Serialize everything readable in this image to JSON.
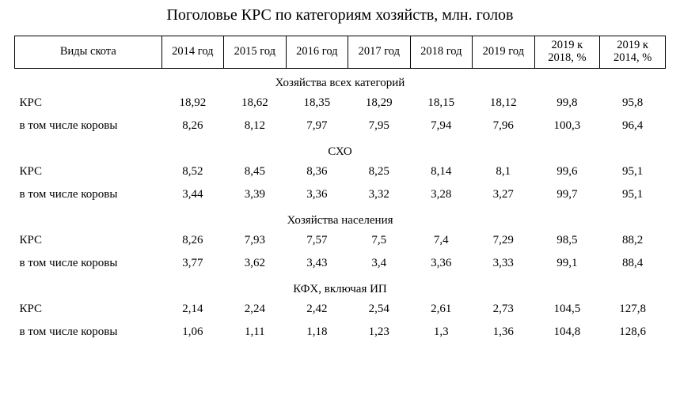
{
  "title": "Поголовье КРС по категориям хозяйств, млн. голов",
  "type": "table",
  "background_color": "#ffffff",
  "text_color": "#000000",
  "border_color": "#000000",
  "font_family": "Times New Roman",
  "title_fontsize": 20,
  "body_fontsize": 15,
  "columns": {
    "c0": "Виды скота",
    "c1": "2014 год",
    "c2": "2015 год",
    "c3": "2016 год",
    "c4": "2017 год",
    "c5": "2018 год",
    "c6": "2019 год",
    "c7_line1": "2019 к",
    "c7_line2": "2018, %",
    "c8_line1": "2019 к",
    "c8_line2": "2014, %"
  },
  "sections": [
    {
      "heading": "Хозяйства всех категорий",
      "rows": [
        {
          "label": "КРС",
          "v": [
            "18,92",
            "18,62",
            "18,35",
            "18,29",
            "18,15",
            "18,12",
            "99,8",
            "95,8"
          ]
        },
        {
          "label": "в том числе коровы",
          "v": [
            "8,26",
            "8,12",
            "7,97",
            "7,95",
            "7,94",
            "7,96",
            "100,3",
            "96,4"
          ]
        }
      ]
    },
    {
      "heading": "СХО",
      "rows": [
        {
          "label": "КРС",
          "v": [
            "8,52",
            "8,45",
            "8,36",
            "8,25",
            "8,14",
            "8,1",
            "99,6",
            "95,1"
          ]
        },
        {
          "label": "в том числе коровы",
          "v": [
            "3,44",
            "3,39",
            "3,36",
            "3,32",
            "3,28",
            "3,27",
            "99,7",
            "95,1"
          ]
        }
      ]
    },
    {
      "heading": "Хозяйства населения",
      "rows": [
        {
          "label": "КРС",
          "v": [
            "8,26",
            "7,93",
            "7,57",
            "7,5",
            "7,4",
            "7,29",
            "98,5",
            "88,2"
          ]
        },
        {
          "label": "в том числе коровы",
          "v": [
            "3,77",
            "3,62",
            "3,43",
            "3,4",
            "3,36",
            "3,33",
            "99,1",
            "88,4"
          ]
        }
      ]
    },
    {
      "heading": "КФХ, включая ИП",
      "rows": [
        {
          "label": "КРС",
          "v": [
            "2,14",
            "2,24",
            "2,42",
            "2,54",
            "2,61",
            "2,73",
            "104,5",
            "127,8"
          ]
        },
        {
          "label": "в том числе коровы",
          "v": [
            "1,06",
            "1,11",
            "1,18",
            "1,23",
            "1,3",
            "1,36",
            "104,8",
            "128,6"
          ]
        }
      ]
    }
  ]
}
